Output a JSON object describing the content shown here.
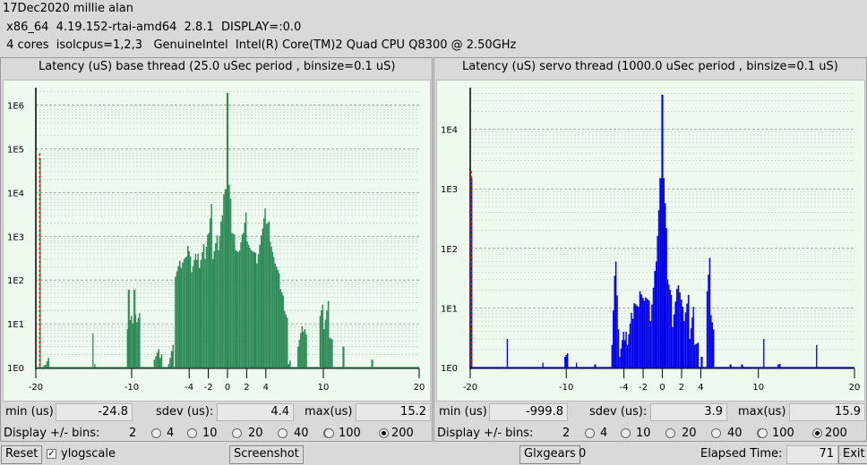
{
  "header": {
    "line1": "17Dec2020 millie alan",
    "line2": " x86_64  4.19.152-rtai-amd64  2.8.1  DISPLAY=:0.0",
    "line3": " 4 cores  isolcpus=1,2,3   GenuineIntel  Intel(R) Core(TM)2 Quad CPU Q8300 @ 2.50GHz"
  },
  "panels": [
    {
      "title": "Latency (uS) base thread (25.0 uSec period , binsize=0.1 uS)",
      "min_label": "min (us)",
      "min": "-24.8",
      "sdev_label": "sdev (us):",
      "sdev": "4.4",
      "max_label": "max(us)",
      "max": "15.2",
      "bins_label": "Display +/- bins:",
      "bin_options": [
        "2",
        "4",
        "10",
        "20",
        "40",
        "100",
        "200"
      ],
      "bin_selected": "200",
      "color": "#2e8b57",
      "marker_color": "#cc2222"
    },
    {
      "title": "Latency (uS) servo thread (1000.0 uSec period , binsize=0.1 uS)",
      "min_label": "min (us)",
      "min": "-999.8",
      "sdev_label": "sdev (us):",
      "sdev": "3.9",
      "max_label": "max(us)",
      "max": "15.9",
      "bins_label": "Display +/- bins:",
      "bin_options": [
        "2",
        "4",
        "10",
        "20",
        "40",
        "100",
        "200"
      ],
      "bin_selected": "200",
      "color": "#0000ee",
      "marker_color": "#cc2222"
    }
  ],
  "chart_data": [
    {
      "type": "bar",
      "scale": "log",
      "xlim": [
        -20,
        20
      ],
      "ylim_decades": [
        0,
        6.4
      ],
      "x_ticks": [
        "-20",
        "-10",
        "-4",
        "-2",
        "0",
        "2",
        "4",
        "10",
        "20"
      ],
      "x_tick_values": [
        -20,
        -10,
        -4,
        -2,
        0,
        2,
        4,
        10,
        20
      ],
      "y_ticks": [
        "1E0",
        "1E1",
        "1E2",
        "1E3",
        "1E4",
        "1E5",
        "1E6"
      ],
      "y_tick_values": [
        0,
        1,
        2,
        3,
        4,
        5,
        6
      ],
      "outlier": {
        "x": -19.6,
        "log": 4.9
      },
      "groups": [
        {
          "x": [
            -19.6,
            -19.6
          ],
          "log": [
            4.9,
            4.9
          ]
        },
        {
          "x": [
            -19.2,
            -18.6
          ],
          "log": [
            0.1,
            0.1
          ]
        },
        {
          "x": [
            -14.1,
            -14.0
          ],
          "log": [
            0.9,
            0.9
          ]
        },
        {
          "x": [
            -13.9,
            -13.8
          ],
          "log": [
            0.2,
            0.2
          ]
        },
        {
          "x": [
            -10.5,
            -9.1
          ],
          "log": [
            1.0,
            1.2
          ]
        },
        {
          "x": [
            -10.4,
            -10.2
          ],
          "log": [
            1.9,
            1.5
          ]
        },
        {
          "x": [
            -9.8,
            -9.6
          ],
          "log": [
            1.9,
            1.2
          ]
        },
        {
          "x": [
            -7.7,
            -6.8
          ],
          "log": [
            0.3,
            0.3
          ]
        },
        {
          "x": [
            -6.2,
            -5.6
          ],
          "log": [
            0.2,
            0.4
          ]
        },
        {
          "x": [
            -5.5,
            -4.6
          ],
          "log": [
            2.2,
            2.4
          ]
        },
        {
          "x": [
            -4.6,
            -4.2
          ],
          "log": [
            2.6,
            2.5
          ]
        },
        {
          "x": [
            -4.2,
            -3.8
          ],
          "log": [
            2.9,
            2.5
          ]
        },
        {
          "x": [
            -3.8,
            -3.0
          ],
          "log": [
            2.3,
            2.6
          ]
        },
        {
          "x": [
            -3.0,
            -2.4
          ],
          "log": [
            2.4,
            2.7
          ]
        },
        {
          "x": [
            -2.4,
            -2.0
          ],
          "log": [
            2.6,
            3.0
          ]
        },
        {
          "x": [
            -2.0,
            -1.6
          ],
          "log": [
            3.2,
            3.7
          ]
        },
        {
          "x": [
            -1.6,
            -1.0
          ],
          "log": [
            2.6,
            2.9
          ]
        },
        {
          "x": [
            -1.0,
            -0.6
          ],
          "log": [
            2.8,
            3.3
          ]
        },
        {
          "x": [
            -0.6,
            -0.3
          ],
          "log": [
            3.6,
            4.0
          ]
        },
        {
          "x": [
            -0.3,
            -0.1
          ],
          "log": [
            4.2,
            5.0
          ]
        },
        {
          "x": [
            -0.1,
            0.1
          ],
          "log": [
            6.4,
            5.8
          ]
        },
        {
          "x": [
            0.1,
            0.4
          ],
          "log": [
            4.3,
            3.9
          ]
        },
        {
          "x": [
            0.4,
            0.8
          ],
          "log": [
            3.2,
            3.0
          ]
        },
        {
          "x": [
            0.8,
            1.2
          ],
          "log": [
            2.8,
            2.6
          ]
        },
        {
          "x": [
            1.2,
            1.6
          ],
          "log": [
            2.8,
            3.0
          ]
        },
        {
          "x": [
            1.6,
            2.0
          ],
          "log": [
            3.2,
            3.5
          ]
        },
        {
          "x": [
            2.0,
            2.4
          ],
          "log": [
            3.0,
            2.7
          ]
        },
        {
          "x": [
            2.4,
            3.0
          ],
          "log": [
            2.8,
            2.5
          ]
        },
        {
          "x": [
            3.0,
            3.6
          ],
          "log": [
            2.5,
            2.9
          ]
        },
        {
          "x": [
            3.6,
            4.0
          ],
          "log": [
            3.3,
            3.6
          ]
        },
        {
          "x": [
            4.0,
            4.4
          ],
          "log": [
            3.4,
            3.3
          ]
        },
        {
          "x": [
            4.4,
            4.9
          ],
          "log": [
            3.0,
            2.4
          ]
        },
        {
          "x": [
            4.9,
            6.3
          ],
          "log": [
            2.5,
            1.1
          ]
        },
        {
          "x": [
            6.3,
            6.6
          ],
          "log": [
            0.2,
            0.2
          ]
        },
        {
          "x": [
            7.3,
            8.0
          ],
          "log": [
            0.6,
            0.9
          ]
        },
        {
          "x": [
            8.0,
            8.3
          ],
          "log": [
            1.0,
            0.8
          ]
        },
        {
          "x": [
            9.6,
            10.0
          ],
          "log": [
            1.3,
            1.4
          ]
        },
        {
          "x": [
            10.0,
            10.6
          ],
          "log": [
            1.0,
            1.4
          ]
        },
        {
          "x": [
            10.6,
            11.0
          ],
          "log": [
            0.8,
            0.6
          ]
        },
        {
          "x": [
            12.0,
            12.2
          ],
          "log": [
            0.6,
            0.5
          ]
        },
        {
          "x": [
            15.0,
            15.2
          ],
          "log": [
            0.3,
            0.3
          ]
        }
      ]
    },
    {
      "type": "bar",
      "scale": "log",
      "xlim": [
        -20,
        20
      ],
      "ylim_decades": [
        0,
        4.7
      ],
      "x_ticks": [
        "-20",
        "-10",
        "-4",
        "-2",
        "0",
        "2",
        "4",
        "10",
        "20"
      ],
      "x_tick_values": [
        -20,
        -10,
        -4,
        -2,
        0,
        2,
        4,
        10,
        20
      ],
      "y_ticks": [
        "1E0",
        "1E1",
        "1E2",
        "1E3",
        "1E4"
      ],
      "y_tick_values": [
        0,
        1,
        2,
        3,
        4
      ],
      "outlier": {
        "x": -19.9,
        "log": 3.3
      },
      "groups": [
        {
          "x": [
            -19.9,
            -19.8
          ],
          "log": [
            3.3,
            3.3
          ]
        },
        {
          "x": [
            -16.2,
            -16.1
          ],
          "log": [
            0.6,
            0.6
          ]
        },
        {
          "x": [
            -12.5,
            -12.4
          ],
          "log": [
            0.2,
            0.2
          ]
        },
        {
          "x": [
            -10.2,
            -9.8
          ],
          "log": [
            0.3,
            0.2
          ]
        },
        {
          "x": [
            -9.0,
            -8.9
          ],
          "log": [
            0.2,
            0.2
          ]
        },
        {
          "x": [
            -7.1,
            -6.9
          ],
          "log": [
            0.1,
            0.1
          ]
        },
        {
          "x": [
            -5.3,
            -4.9
          ],
          "log": [
            0.5,
            1.5
          ]
        },
        {
          "x": [
            -4.9,
            -4.5
          ],
          "log": [
            1.9,
            0.6
          ]
        },
        {
          "x": [
            -4.5,
            -3.7
          ],
          "log": [
            0.3,
            0.6
          ]
        },
        {
          "x": [
            -3.7,
            -3.0
          ],
          "log": [
            0.5,
            0.9
          ]
        },
        {
          "x": [
            -3.0,
            -2.4
          ],
          "log": [
            1.2,
            0.9
          ]
        },
        {
          "x": [
            -2.4,
            -1.8
          ],
          "log": [
            1.4,
            1.0
          ]
        },
        {
          "x": [
            -1.8,
            -1.3
          ],
          "log": [
            1.3,
            1.0
          ]
        },
        {
          "x": [
            -1.3,
            -0.7
          ],
          "log": [
            0.9,
            1.5
          ]
        },
        {
          "x": [
            -0.7,
            -0.3
          ],
          "log": [
            1.9,
            2.6
          ]
        },
        {
          "x": [
            -0.3,
            -0.1
          ],
          "log": [
            3.3,
            4.4
          ]
        },
        {
          "x": [
            -0.1,
            0.1
          ],
          "log": [
            4.7,
            4.0
          ]
        },
        {
          "x": [
            0.1,
            0.5
          ],
          "log": [
            3.3,
            2.3
          ]
        },
        {
          "x": [
            0.5,
            1.0
          ],
          "log": [
            1.6,
            1.1
          ]
        },
        {
          "x": [
            1.0,
            1.6
          ],
          "log": [
            0.8,
            1.2
          ]
        },
        {
          "x": [
            1.6,
            2.2
          ],
          "log": [
            1.5,
            0.9
          ]
        },
        {
          "x": [
            2.2,
            2.8
          ],
          "log": [
            0.9,
            1.1
          ]
        },
        {
          "x": [
            2.8,
            3.3
          ],
          "log": [
            0.6,
            0.9
          ]
        },
        {
          "x": [
            3.3,
            3.8
          ],
          "log": [
            0.5,
            0.3
          ]
        },
        {
          "x": [
            4.0,
            4.2
          ],
          "log": [
            0.3,
            0.3
          ]
        },
        {
          "x": [
            4.6,
            5.0
          ],
          "log": [
            1.4,
            1.8
          ]
        },
        {
          "x": [
            5.0,
            5.4
          ],
          "log": [
            1.0,
            0.6
          ]
        },
        {
          "x": [
            7.0,
            7.2
          ],
          "log": [
            0.1,
            0.1
          ]
        },
        {
          "x": [
            8.2,
            8.4
          ],
          "log": [
            0.1,
            0.1
          ]
        },
        {
          "x": [
            10.5,
            10.6
          ],
          "log": [
            0.6,
            0.6
          ]
        },
        {
          "x": [
            12.0,
            12.3
          ],
          "log": [
            0.1,
            0.1
          ]
        },
        {
          "x": [
            16.0,
            16.1
          ],
          "log": [
            0.5,
            0.5
          ]
        }
      ]
    }
  ],
  "bottom": {
    "reset": "Reset",
    "ylogscale_mark": "✓",
    "ylogscale": "ylogscale",
    "screenshot": "Screenshot",
    "glxgears": "Glxgears",
    "glxgears_count": "0",
    "elapsed_label": "Elapsed Time:",
    "elapsed": "71",
    "exit": "Exit"
  }
}
